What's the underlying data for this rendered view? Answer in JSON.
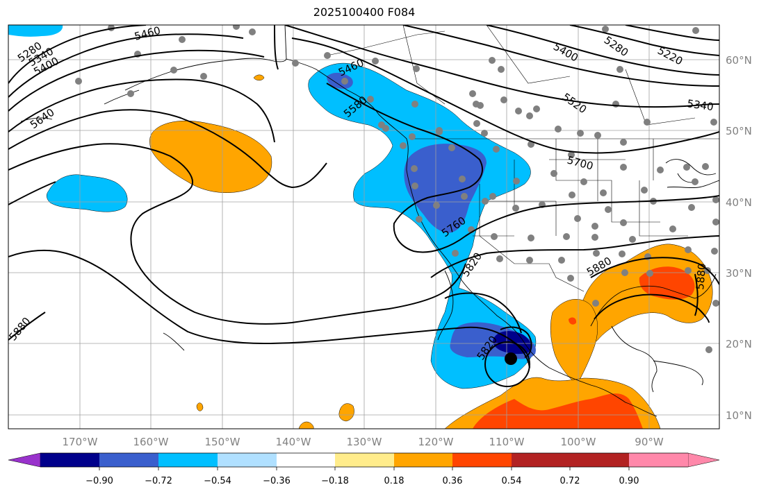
{
  "title": "2025100400 F084",
  "map": {
    "lat_labels": [
      "60°N",
      "50°N",
      "40°N",
      "30°N",
      "20°N",
      "10°N"
    ],
    "lon_labels": [
      "170°W",
      "160°W",
      "150°W",
      "140°W",
      "130°W",
      "120°W",
      "110°W",
      "100°W",
      "90°W"
    ],
    "contour_labels": [
      "5280",
      "5340",
      "5400",
      "5460",
      "5640",
      "5460",
      "5580",
      "5400",
      "5280",
      "5220",
      "5520",
      "5340",
      "5700",
      "5760",
      "5820",
      "5880",
      "5820",
      "5880",
      "5880"
    ],
    "fill_colors": {
      "orange": "#ffa500",
      "red_orange": "#ff4500",
      "light_blue": "#00bfff",
      "medium_blue": "#3a5fcd",
      "navy": "#00008b"
    },
    "dot_color": "#808080"
  },
  "colorbar": {
    "colors": [
      "#9932cc",
      "#00008b",
      "#3a5fcd",
      "#00bfff",
      "#b0e0ff",
      "#ffffff",
      "#ffec8b",
      "#ffa500",
      "#ff4500",
      "#b22222",
      "#ff88aa"
    ],
    "tick_labels": [
      "−0.90",
      "−0.72",
      "−0.54",
      "−0.36",
      "−0.18",
      "0.18",
      "0.36",
      "0.54",
      "0.72",
      "0.90"
    ]
  }
}
